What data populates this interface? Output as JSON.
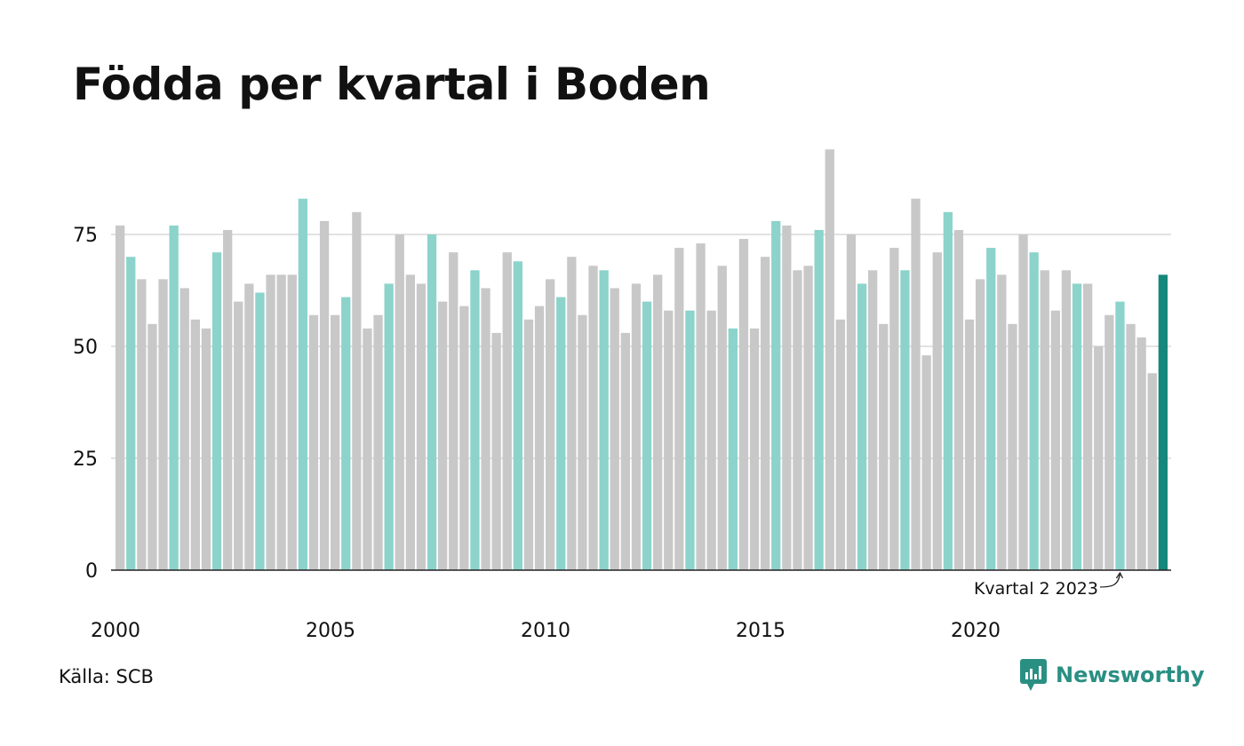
{
  "title": "Födda per kvartal i Boden",
  "source": "Källa: SCB",
  "brand": "Newsworthy",
  "colors": {
    "gray": "#c8c8c8",
    "highlight": "#8cd3cb",
    "latest": "#16877b",
    "grid": "#e2e2e2",
    "brand": "#2a8f83"
  },
  "chart_data": {
    "type": "bar",
    "title": "Födda per kvartal i Boden",
    "xlabel": "",
    "ylabel": "",
    "ylim": [
      0,
      95
    ],
    "yticks": [
      0,
      25,
      50,
      75
    ],
    "x_tick_labels": [
      "2000",
      "2005",
      "2010",
      "2015",
      "2020"
    ],
    "grid": true,
    "highlighted_quarter": 2,
    "start": "2000 Q1",
    "end": "2024 Q2",
    "annotation": "Kvartal 2 2023",
    "values": [
      77,
      70,
      65,
      55,
      65,
      77,
      63,
      56,
      54,
      71,
      76,
      60,
      64,
      62,
      66,
      66,
      66,
      83,
      57,
      78,
      57,
      61,
      80,
      54,
      57,
      64,
      75,
      66,
      64,
      75,
      60,
      71,
      59,
      67,
      63,
      53,
      71,
      69,
      56,
      59,
      65,
      61,
      70,
      57,
      68,
      67,
      63,
      53,
      64,
      60,
      66,
      58,
      72,
      58,
      73,
      58,
      68,
      54,
      74,
      54,
      70,
      78,
      77,
      67,
      68,
      76,
      94,
      56,
      75,
      64,
      67,
      55,
      72,
      67,
      83,
      48,
      71,
      80,
      76,
      56,
      65,
      72,
      66,
      55,
      75,
      71,
      67,
      58,
      67,
      64,
      64,
      50,
      57,
      60,
      55,
      52,
      44,
      66
    ]
  }
}
